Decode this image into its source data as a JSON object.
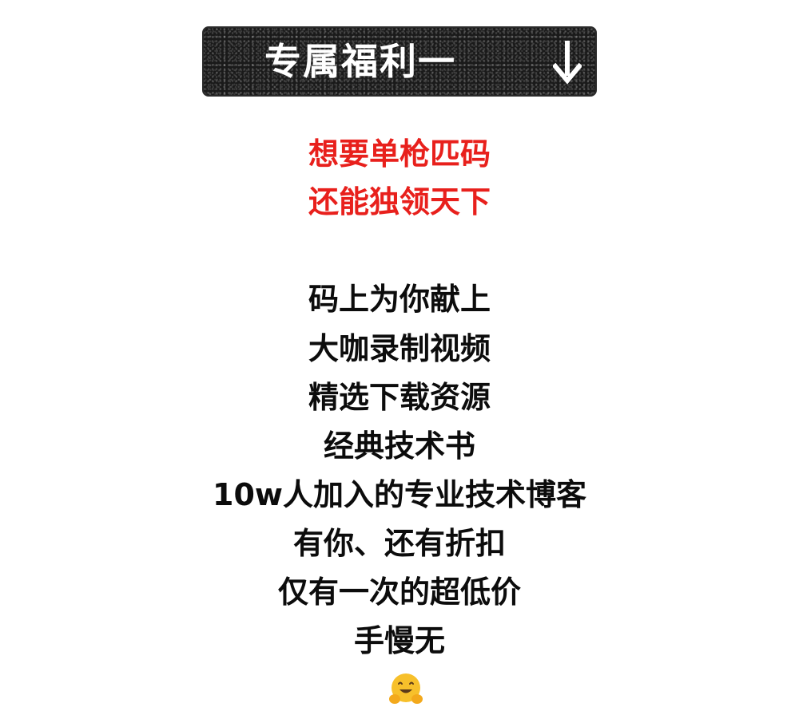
{
  "banner": {
    "title": "专属福利一",
    "arrow_icon": "arrow-down-icon"
  },
  "highlight_lines": [
    "想要单枪匹码",
    "还能独领天下"
  ],
  "body_lines": [
    "码上为你献上",
    "大咖录制视频",
    "精选下载资源",
    "经典技术书",
    "10w人加入的专业技术博客",
    "有你、还有折扣",
    "仅有一次的超低价",
    "手慢无"
  ],
  "emoji": {
    "icon": "hugging-face-icon"
  },
  "colors": {
    "highlight": "#e8201c",
    "text": "#0c0c0c",
    "banner_bg": "#1a1a1a",
    "banner_text": "#ffffff"
  }
}
